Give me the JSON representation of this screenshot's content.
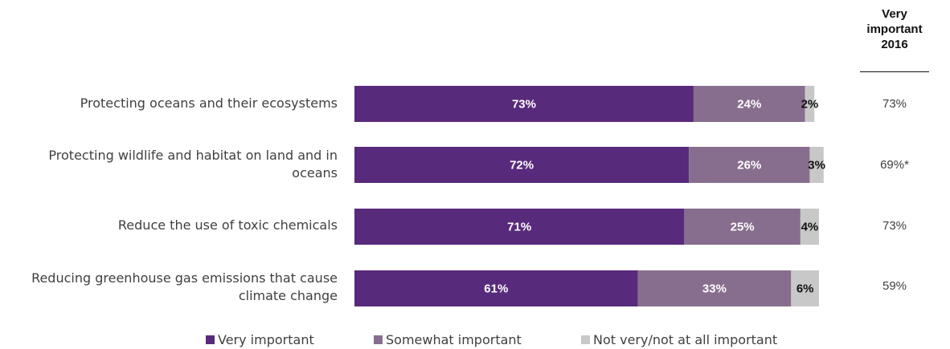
{
  "chart_data": {
    "type": "bar",
    "orientation": "horizontal",
    "stacked": true,
    "categories": [
      "Protecting oceans and their ecosystems",
      "Protecting wildlife and habitat on land and in oceans",
      "Reduce the use of toxic chemicals",
      "Reducing greenhouse gas emissions that cause climate change"
    ],
    "series": [
      {
        "name": "Very important",
        "color": "#582a7c",
        "values": [
          73,
          72,
          71,
          61
        ],
        "labels": [
          "73%",
          "72%",
          "71%",
          "61%"
        ]
      },
      {
        "name": "Somewhat important",
        "color": "#886e8e",
        "values": [
          24,
          26,
          25,
          33
        ],
        "labels": [
          "24%",
          "26%",
          "25%",
          "33%"
        ]
      },
      {
        "name": "Not very/not at all important",
        "color": "#c8c8c8",
        "values": [
          2,
          3,
          4,
          6
        ],
        "labels": [
          "2%",
          "3%",
          "4%",
          "6%"
        ]
      }
    ],
    "xlim": [
      0,
      100
    ],
    "legend_position": "bottom",
    "grid": false
  },
  "comparison_column": {
    "header_lines": [
      "Very",
      "important",
      "2016"
    ],
    "values": [
      "73%",
      "69%*",
      "73%",
      "59%"
    ]
  }
}
